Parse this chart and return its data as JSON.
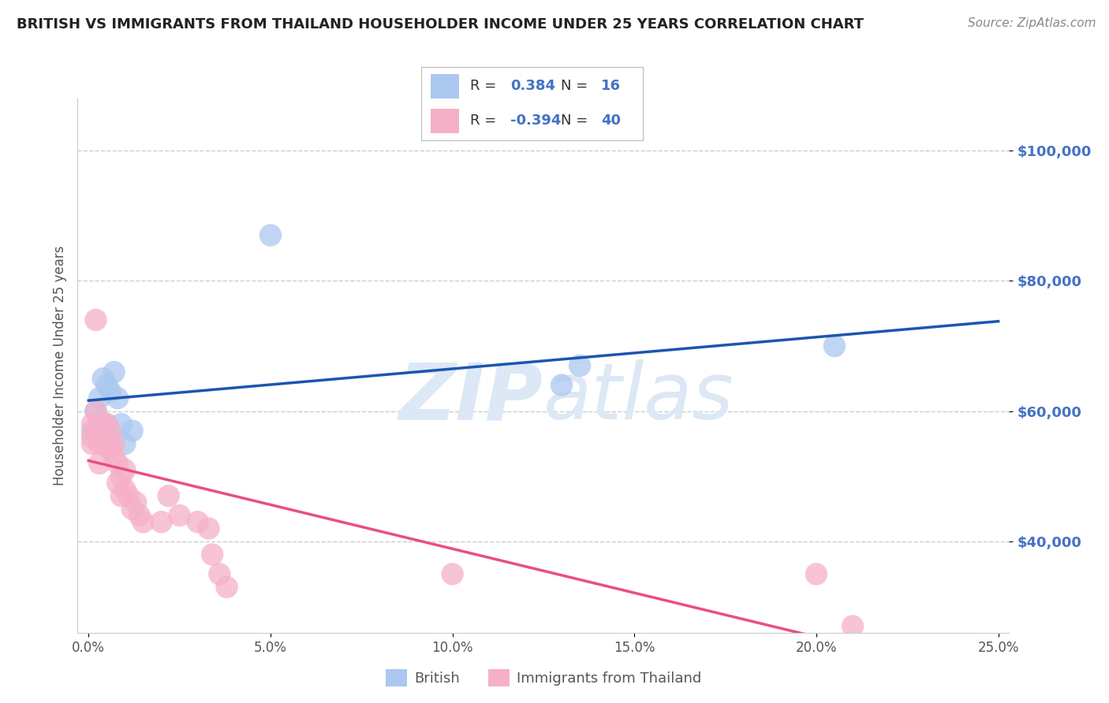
{
  "title": "BRITISH VS IMMIGRANTS FROM THAILAND HOUSEHOLDER INCOME UNDER 25 YEARS CORRELATION CHART",
  "source": "Source: ZipAtlas.com",
  "ylabel": "Householder Income Under 25 years",
  "legend_british_R": "0.384",
  "legend_british_N": "16",
  "legend_thai_R": "-0.394",
  "legend_thai_N": "40",
  "british_color": "#aac8f0",
  "thai_color": "#f5b0c8",
  "british_line_color": "#1a56b0",
  "thai_line_color": "#e8507a",
  "title_color": "#222222",
  "source_color": "#888888",
  "label_blue_color": "#4472c4",
  "watermark_color": "#dce8f5",
  "grid_color": "#cccccc",
  "y_ticks": [
    40000,
    60000,
    80000,
    100000
  ],
  "y_labels": [
    "$40,000",
    "$60,000",
    "$80,000",
    "$100,000"
  ],
  "x_ticks": [
    0.0,
    0.05,
    0.1,
    0.15,
    0.2,
    0.25
  ],
  "x_labels": [
    "0.0%",
    "5.0%",
    "10.0%",
    "15.0%",
    "20.0%",
    "25.0%"
  ],
  "xlim": [
    -0.003,
    0.253
  ],
  "ylim": [
    26000,
    108000
  ],
  "british_x": [
    0.001,
    0.002,
    0.003,
    0.004,
    0.005,
    0.005,
    0.006,
    0.007,
    0.008,
    0.009,
    0.01,
    0.012,
    0.05,
    0.13,
    0.135,
    0.205
  ],
  "british_y": [
    57000,
    60000,
    62000,
    65000,
    64000,
    58000,
    63000,
    66000,
    62000,
    58000,
    55000,
    57000,
    87000,
    64000,
    67000,
    70000
  ],
  "thai_x": [
    0.001,
    0.001,
    0.001,
    0.002,
    0.002,
    0.002,
    0.003,
    0.003,
    0.003,
    0.004,
    0.004,
    0.004,
    0.005,
    0.005,
    0.006,
    0.006,
    0.007,
    0.007,
    0.008,
    0.008,
    0.009,
    0.009,
    0.01,
    0.01,
    0.011,
    0.012,
    0.013,
    0.014,
    0.015,
    0.02,
    0.022,
    0.025,
    0.03,
    0.033,
    0.034,
    0.036,
    0.038,
    0.1,
    0.2,
    0.21
  ],
  "thai_y": [
    58000,
    56000,
    55000,
    60000,
    57000,
    74000,
    58000,
    55000,
    52000,
    56000,
    58000,
    55000,
    58000,
    55000,
    54000,
    57000,
    55000,
    53000,
    52000,
    49000,
    47000,
    50000,
    48000,
    51000,
    47000,
    45000,
    46000,
    44000,
    43000,
    43000,
    47000,
    44000,
    43000,
    42000,
    38000,
    35000,
    33000,
    35000,
    35000,
    27000
  ]
}
